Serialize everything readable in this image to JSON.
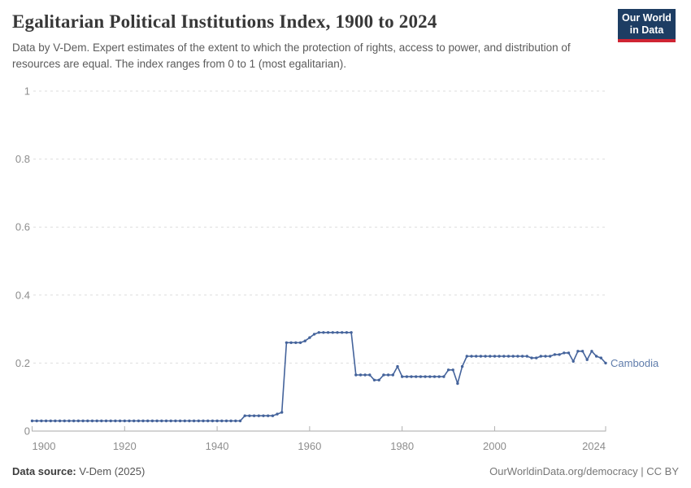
{
  "header": {
    "title": "Egalitarian Political Institutions Index, 1900 to 2024",
    "subtitle": "Data by V-Dem. Expert estimates of the extent to which the protection of rights, access to power, and distribution of resources are equal. The index ranges from 0 to 1 (most egalitarian).",
    "logo": {
      "line1": "Our World",
      "line2": "in Data",
      "bg_color": "#1d3d63",
      "accent_color": "#cf2433"
    }
  },
  "chart_data": {
    "type": "line",
    "title": "Egalitarian Political Institutions Index, 1900 to 2024",
    "xlabel": "",
    "ylabel": "",
    "xlim": [
      1900,
      2024
    ],
    "ylim": [
      0,
      1
    ],
    "x_ticks": [
      1900,
      1920,
      1940,
      1960,
      1980,
      2000,
      2024
    ],
    "y_ticks": [
      0,
      0.2,
      0.4,
      0.6,
      0.8,
      1
    ],
    "grid": "dashed-horizontal",
    "legend_position": "end-of-line-label",
    "marker": "circle",
    "colors": {
      "line": "#44639b",
      "label": "#5f7cab",
      "gridline": "#dedede",
      "axis": "#a9a9a9",
      "tick": "#b0b0b0",
      "axis_text": "#8d8d8d"
    },
    "series": [
      {
        "name": "Cambodia",
        "years": [
          1900,
          1901,
          1902,
          1903,
          1904,
          1905,
          1906,
          1907,
          1908,
          1909,
          1910,
          1911,
          1912,
          1913,
          1914,
          1915,
          1916,
          1917,
          1918,
          1919,
          1920,
          1921,
          1922,
          1923,
          1924,
          1925,
          1926,
          1927,
          1928,
          1929,
          1930,
          1931,
          1932,
          1933,
          1934,
          1935,
          1936,
          1937,
          1938,
          1939,
          1940,
          1941,
          1942,
          1943,
          1944,
          1945,
          1946,
          1947,
          1948,
          1949,
          1950,
          1951,
          1952,
          1953,
          1954,
          1955,
          1956,
          1957,
          1958,
          1959,
          1960,
          1961,
          1962,
          1963,
          1964,
          1965,
          1966,
          1967,
          1968,
          1969,
          1970,
          1971,
          1972,
          1973,
          1974,
          1975,
          1976,
          1977,
          1978,
          1979,
          1980,
          1981,
          1982,
          1983,
          1984,
          1985,
          1986,
          1987,
          1988,
          1989,
          1990,
          1991,
          1992,
          1993,
          1994,
          1995,
          1996,
          1997,
          1998,
          1999,
          2000,
          2001,
          2002,
          2003,
          2004,
          2005,
          2006,
          2007,
          2008,
          2009,
          2010,
          2011,
          2012,
          2013,
          2014,
          2015,
          2016,
          2017,
          2018,
          2019,
          2020,
          2021,
          2022,
          2023,
          2024
        ],
        "values": [
          0.03,
          0.03,
          0.03,
          0.03,
          0.03,
          0.03,
          0.03,
          0.03,
          0.03,
          0.03,
          0.03,
          0.03,
          0.03,
          0.03,
          0.03,
          0.03,
          0.03,
          0.03,
          0.03,
          0.03,
          0.03,
          0.03,
          0.03,
          0.03,
          0.03,
          0.03,
          0.03,
          0.03,
          0.03,
          0.03,
          0.03,
          0.03,
          0.03,
          0.03,
          0.03,
          0.03,
          0.03,
          0.03,
          0.03,
          0.03,
          0.03,
          0.03,
          0.03,
          0.03,
          0.03,
          0.03,
          0.045,
          0.045,
          0.045,
          0.045,
          0.045,
          0.045,
          0.045,
          0.05,
          0.055,
          0.26,
          0.26,
          0.26,
          0.26,
          0.265,
          0.275,
          0.285,
          0.29,
          0.29,
          0.29,
          0.29,
          0.29,
          0.29,
          0.29,
          0.29,
          0.165,
          0.165,
          0.165,
          0.165,
          0.15,
          0.15,
          0.165,
          0.165,
          0.165,
          0.19,
          0.16,
          0.16,
          0.16,
          0.16,
          0.16,
          0.16,
          0.16,
          0.16,
          0.16,
          0.16,
          0.18,
          0.18,
          0.14,
          0.19,
          0.22,
          0.22,
          0.22,
          0.22,
          0.22,
          0.22,
          0.22,
          0.22,
          0.22,
          0.22,
          0.22,
          0.22,
          0.22,
          0.22,
          0.215,
          0.215,
          0.22,
          0.22,
          0.22,
          0.225,
          0.225,
          0.23,
          0.23,
          0.205,
          0.235,
          0.235,
          0.21,
          0.235,
          0.22,
          0.215,
          0.2
        ]
      }
    ]
  },
  "footer": {
    "source_label": "Data source:",
    "source_value": "V-Dem (2025)",
    "credit": "OurWorldinData.org/democracy | CC BY"
  }
}
